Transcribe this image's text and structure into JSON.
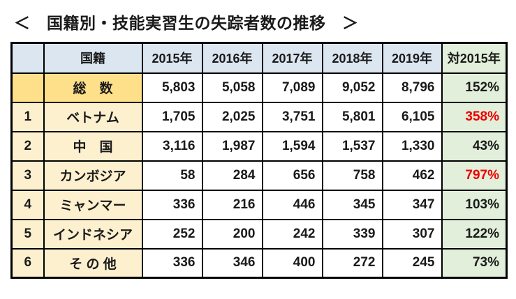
{
  "page_title": "＜　国籍別・技能実習生の失踪者数の推移　＞",
  "colors": {
    "header_blue": "#dce6f1",
    "total_row_gold": "#ffe08a",
    "country_cream": "#fdf0cf",
    "ratio_green": "#e2efda",
    "highlight_red": "#ee0000",
    "border_black": "#000000"
  },
  "chart_data": {
    "type": "table",
    "title": "国籍別・技能実習生の失踪者数の推移",
    "columns": [
      "",
      "国籍",
      "2015年",
      "2016年",
      "2017年",
      "2018年",
      "2019年",
      "対2015年"
    ],
    "rows": [
      {
        "rank": "",
        "name": "総　数",
        "values": [
          "5,803",
          "5,058",
          "7,089",
          "9,052",
          "8,796"
        ],
        "ratio": "152%",
        "highlight": false,
        "total": true
      },
      {
        "rank": "1",
        "name": "ベトナム",
        "values": [
          "1,705",
          "2,025",
          "3,751",
          "5,801",
          "6,105"
        ],
        "ratio": "358%",
        "highlight": true,
        "total": false
      },
      {
        "rank": "2",
        "name": "中　国",
        "values": [
          "3,116",
          "1,987",
          "1,594",
          "1,537",
          "1,330"
        ],
        "ratio": "43%",
        "highlight": false,
        "total": false
      },
      {
        "rank": "3",
        "name": "カンボジア",
        "values": [
          "58",
          "284",
          "656",
          "758",
          "462"
        ],
        "ratio": "797%",
        "highlight": true,
        "total": false
      },
      {
        "rank": "4",
        "name": "ミャンマー",
        "values": [
          "336",
          "216",
          "446",
          "345",
          "347"
        ],
        "ratio": "103%",
        "highlight": false,
        "total": false
      },
      {
        "rank": "5",
        "name": "インドネシア",
        "values": [
          "252",
          "200",
          "242",
          "339",
          "307"
        ],
        "ratio": "122%",
        "highlight": false,
        "total": false
      },
      {
        "rank": "6",
        "name": "そ の 他",
        "values": [
          "336",
          "346",
          "400",
          "272",
          "245"
        ],
        "ratio": "73%",
        "highlight": false,
        "total": false
      }
    ]
  }
}
